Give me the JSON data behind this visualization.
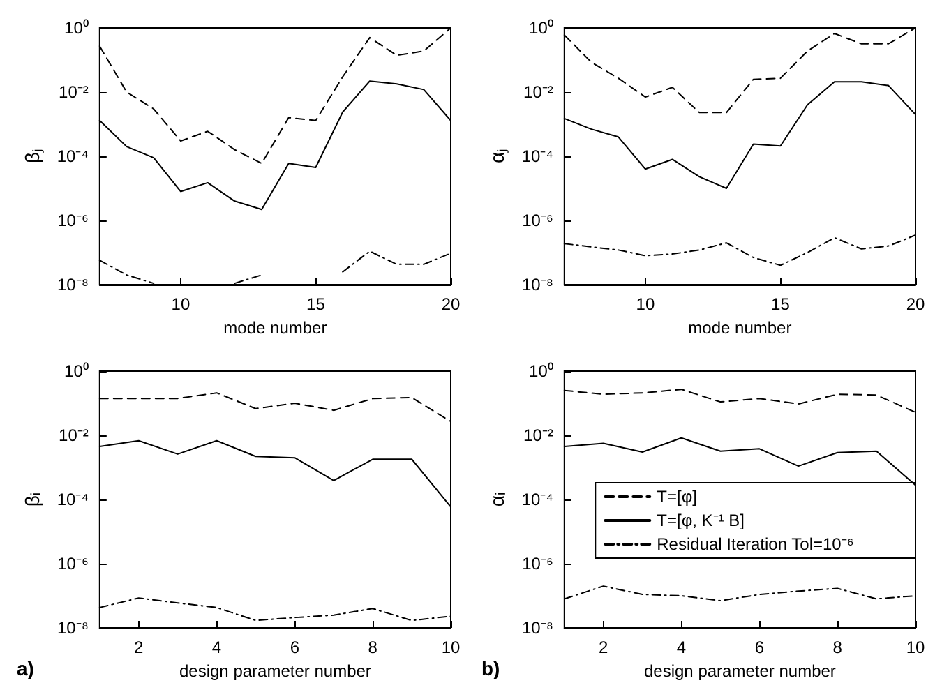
{
  "chart_data": [
    {
      "type": "line",
      "xlabel": "mode number",
      "ylabel": "βⱼ",
      "x": [
        7,
        8,
        9,
        10,
        11,
        12,
        13,
        14,
        15,
        16,
        17,
        18,
        19,
        20
      ],
      "xlim": [
        7,
        20
      ],
      "xticks": [
        10,
        15,
        20
      ],
      "ylim": [
        1e-08,
        1
      ],
      "yticks": [
        {
          "value": 1e-08,
          "label": "10⁻⁸"
        },
        {
          "value": 1e-06,
          "label": "10⁻⁶"
        },
        {
          "value": 0.0001,
          "label": "10⁻⁴"
        },
        {
          "value": 0.01,
          "label": "10⁻²"
        },
        {
          "value": 1,
          "label": "10⁰"
        }
      ],
      "log": "y",
      "grid": false,
      "legend": false,
      "marker": "none",
      "series": [
        {
          "color": "#000000",
          "line_style": "dashed",
          "values": [
            0.27,
            0.01,
            0.003,
            0.0003,
            0.0006,
            0.00016,
            6e-05,
            0.0016,
            0.0013,
            0.03,
            0.5,
            0.14,
            0.19,
            1
          ]
        },
        {
          "color": "#000000",
          "line_style": "solid",
          "values": [
            0.0013,
            0.0002,
            9e-05,
            8e-06,
            1.5e-05,
            4e-06,
            2.2e-06,
            6e-05,
            4.5e-05,
            0.0024,
            0.022,
            0.018,
            0.012,
            0.0013
          ]
        },
        {
          "color": "#000000",
          "line_style": "dashdot",
          "values": [
            5.7e-08,
            2e-08,
            1.1e-08,
            null,
            null,
            1.1e-08,
            2e-08,
            null,
            null,
            2.5e-08,
            1.1e-07,
            4.3e-08,
            4.3e-08,
            9.5e-08
          ]
        }
      ]
    },
    {
      "type": "line",
      "xlabel": "mode number",
      "ylabel": "αⱼ",
      "x": [
        7,
        8,
        9,
        10,
        11,
        12,
        13,
        14,
        15,
        16,
        17,
        18,
        19,
        20
      ],
      "xlim": [
        7,
        20
      ],
      "xticks": [
        10,
        15,
        20
      ],
      "ylim": [
        1e-08,
        1
      ],
      "yticks": [
        {
          "value": 1e-08,
          "label": "10⁻⁸"
        },
        {
          "value": 1e-06,
          "label": "10⁻⁶"
        },
        {
          "value": 0.0001,
          "label": "10⁻⁴"
        },
        {
          "value": 0.01,
          "label": "10⁻²"
        },
        {
          "value": 1,
          "label": "10⁰"
        }
      ],
      "log": "y",
      "grid": false,
      "legend": false,
      "marker": "none",
      "series": [
        {
          "color": "#000000",
          "line_style": "dashed",
          "values": [
            0.6,
            0.085,
            0.027,
            0.007,
            0.014,
            0.0023,
            0.0023,
            0.025,
            0.027,
            0.19,
            0.67,
            0.32,
            0.32,
            1
          ]
        },
        {
          "color": "#000000",
          "line_style": "solid",
          "values": [
            0.0015,
            0.0007,
            0.0004,
            4e-05,
            8e-05,
            2.3e-05,
            1e-05,
            0.00024,
            0.00021,
            0.004,
            0.021,
            0.021,
            0.016,
            0.002
          ]
        },
        {
          "color": "#000000",
          "line_style": "dashdot",
          "values": [
            1.9e-07,
            1.5e-07,
            1.2e-07,
            8e-08,
            9e-08,
            1.2e-07,
            2e-07,
            7e-08,
            4e-08,
            1e-07,
            2.9e-07,
            1.3e-07,
            1.6e-07,
            3.5e-07
          ]
        }
      ]
    },
    {
      "type": "line",
      "xlabel": "design parameter number",
      "ylabel": "βᵢ",
      "annotations": [
        "a)"
      ],
      "x": [
        1,
        2,
        3,
        4,
        5,
        6,
        7,
        8,
        9,
        10
      ],
      "xlim": [
        1,
        10
      ],
      "xticks": [
        2,
        4,
        6,
        8,
        10
      ],
      "ylim": [
        1e-08,
        1
      ],
      "yticks": [
        {
          "value": 1e-08,
          "label": "10⁻⁸"
        },
        {
          "value": 1e-06,
          "label": "10⁻⁶"
        },
        {
          "value": 0.0001,
          "label": "10⁻⁴"
        },
        {
          "value": 0.01,
          "label": "10⁻²"
        },
        {
          "value": 1,
          "label": "10⁰"
        }
      ],
      "log": "y",
      "grid": false,
      "legend": false,
      "marker": "none",
      "series": [
        {
          "color": "#000000",
          "line_style": "dashed",
          "values": [
            0.14,
            0.14,
            0.14,
            0.21,
            0.068,
            0.1,
            0.06,
            0.14,
            0.15,
            0.027
          ]
        },
        {
          "color": "#000000",
          "line_style": "solid",
          "values": [
            0.0045,
            0.0068,
            0.0026,
            0.0068,
            0.0022,
            0.002,
            0.00039,
            0.0018,
            0.0018,
            5.9e-05
          ]
        },
        {
          "color": "#000000",
          "line_style": "dashdot",
          "values": [
            4.3e-08,
            8.5e-08,
            6e-08,
            4.3e-08,
            1.7e-08,
            2.1e-08,
            2.5e-08,
            4e-08,
            1.7e-08,
            2.3e-08
          ]
        }
      ]
    },
    {
      "type": "line",
      "xlabel": "design parameter number",
      "ylabel": "αᵢ",
      "annotations": [
        "b)"
      ],
      "x": [
        1,
        2,
        3,
        4,
        5,
        6,
        7,
        8,
        9,
        10
      ],
      "xlim": [
        1,
        10
      ],
      "xticks": [
        2,
        4,
        6,
        8,
        10
      ],
      "ylim": [
        1e-08,
        1
      ],
      "yticks": [
        {
          "value": 1e-08,
          "label": "10⁻⁸"
        },
        {
          "value": 1e-06,
          "label": "10⁻⁶"
        },
        {
          "value": 0.0001,
          "label": "10⁻⁴"
        },
        {
          "value": 0.01,
          "label": "10⁻²"
        },
        {
          "value": 1,
          "label": "10⁰"
        }
      ],
      "log": "y",
      "grid": false,
      "legend": "right",
      "marker": "none",
      "series": [
        {
          "name": "T=[φ]",
          "color": "#000000",
          "line_style": "dashed",
          "values": [
            0.25,
            0.19,
            0.21,
            0.27,
            0.11,
            0.14,
            0.095,
            0.19,
            0.18,
            0.052
          ]
        },
        {
          "name": "T=[φ, K⁻¹ B]",
          "color": "#000000",
          "line_style": "solid",
          "values": [
            0.0045,
            0.0056,
            0.003,
            0.0083,
            0.0032,
            0.0038,
            0.0011,
            0.0029,
            0.0032,
            0.00028
          ]
        },
        {
          "name": "Residual Iteration Tol=10⁻⁶",
          "color": "#000000",
          "line_style": "dashdot",
          "values": [
            8e-08,
            2e-07,
            1.1e-07,
            1e-07,
            7e-08,
            1.1e-07,
            1.4e-07,
            1.7e-07,
            8e-08,
            1e-07
          ]
        }
      ]
    }
  ]
}
